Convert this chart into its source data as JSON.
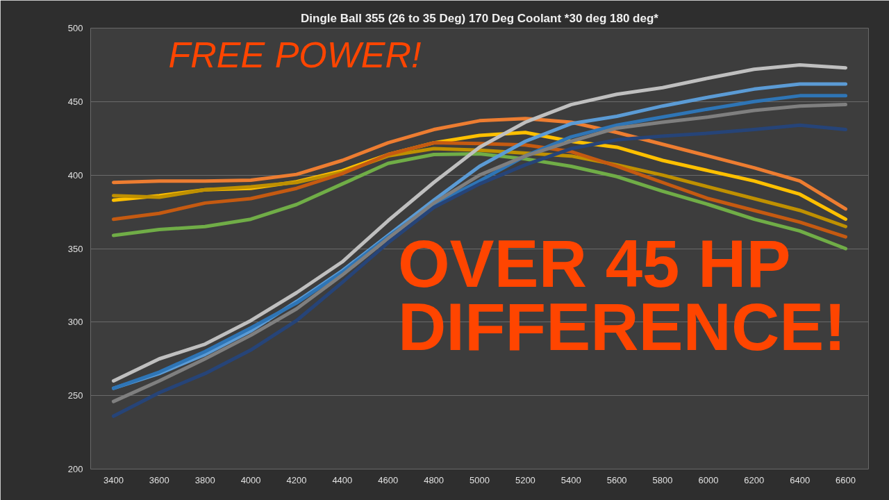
{
  "chart_data": {
    "type": "line",
    "title": "Dingle Ball 355 (26 to 35 Deg) 170 Deg Coolant *30 deg 180 deg*",
    "annotations": [
      "FREE POWER!",
      "OVER 45 HP DIFFERENCE!"
    ],
    "x": [
      3400,
      3600,
      3800,
      4000,
      4200,
      4400,
      4600,
      4800,
      5000,
      5200,
      5400,
      5600,
      5800,
      6000,
      6200,
      6400,
      6600
    ],
    "xlim": [
      3300,
      6700
    ],
    "xticks": [
      3400,
      3600,
      3800,
      4000,
      4200,
      4400,
      4600,
      4800,
      5000,
      5200,
      5400,
      5600,
      5800,
      6000,
      6200,
      6400,
      6600
    ],
    "ylim": [
      200,
      500
    ],
    "yticks": [
      200,
      250,
      300,
      350,
      400,
      450,
      500
    ],
    "grid": "y",
    "marker": "none",
    "line_style": "solid",
    "series": [
      {
        "color": "#ed7d31",
        "values": [
          395,
          396,
          396,
          396.5,
          400.5,
          410,
          422,
          431,
          437,
          438.5,
          436,
          429,
          421,
          413,
          405,
          396,
          377
        ]
      },
      {
        "color": "#ffc000",
        "values": [
          383,
          386,
          390,
          391,
          395.5,
          403,
          414,
          422,
          427,
          429,
          423,
          419,
          410,
          403,
          396,
          387,
          370
        ]
      },
      {
        "color": "#bf9000",
        "values": [
          386,
          385,
          390,
          392,
          395,
          402,
          413,
          418,
          417,
          415,
          413,
          407,
          400,
          392,
          384,
          376,
          365
        ]
      },
      {
        "color": "#c55a11",
        "values": [
          370,
          374,
          381,
          384,
          391,
          401,
          414,
          422,
          421.5,
          420.5,
          416,
          406,
          395,
          384,
          376,
          368,
          358
        ]
      },
      {
        "color": "#70ad47",
        "values": [
          359,
          363,
          365,
          370,
          380,
          394,
          408,
          414,
          414.5,
          411,
          406,
          399,
          389,
          380,
          370,
          362,
          350
        ]
      },
      {
        "color": "#bfbfbf",
        "values": [
          260,
          275,
          285,
          301,
          320,
          341,
          369,
          395,
          419,
          436,
          448,
          455,
          459.5,
          466,
          472,
          475,
          473
        ]
      },
      {
        "color": "#5b9bd5",
        "values": [
          255,
          265,
          278,
          294,
          314,
          335,
          359,
          383,
          406,
          423,
          435,
          440,
          447,
          453,
          458.5,
          462,
          462
        ]
      },
      {
        "color": "#2e75b6",
        "values": [
          255,
          266,
          280,
          296,
          313,
          334,
          358,
          380,
          396,
          413,
          426,
          434,
          439.5,
          445,
          450,
          454,
          454
        ]
      },
      {
        "color": "#7f7f7f",
        "values": [
          246,
          260,
          275,
          291,
          309,
          332,
          357,
          381,
          400,
          413,
          423,
          432,
          436,
          439.5,
          444,
          447,
          448
        ]
      },
      {
        "color": "#264478",
        "values": [
          236,
          252,
          265,
          281,
          301,
          327,
          354,
          378,
          394,
          407,
          418,
          424,
          426.5,
          428.5,
          431,
          434,
          431
        ]
      }
    ]
  }
}
